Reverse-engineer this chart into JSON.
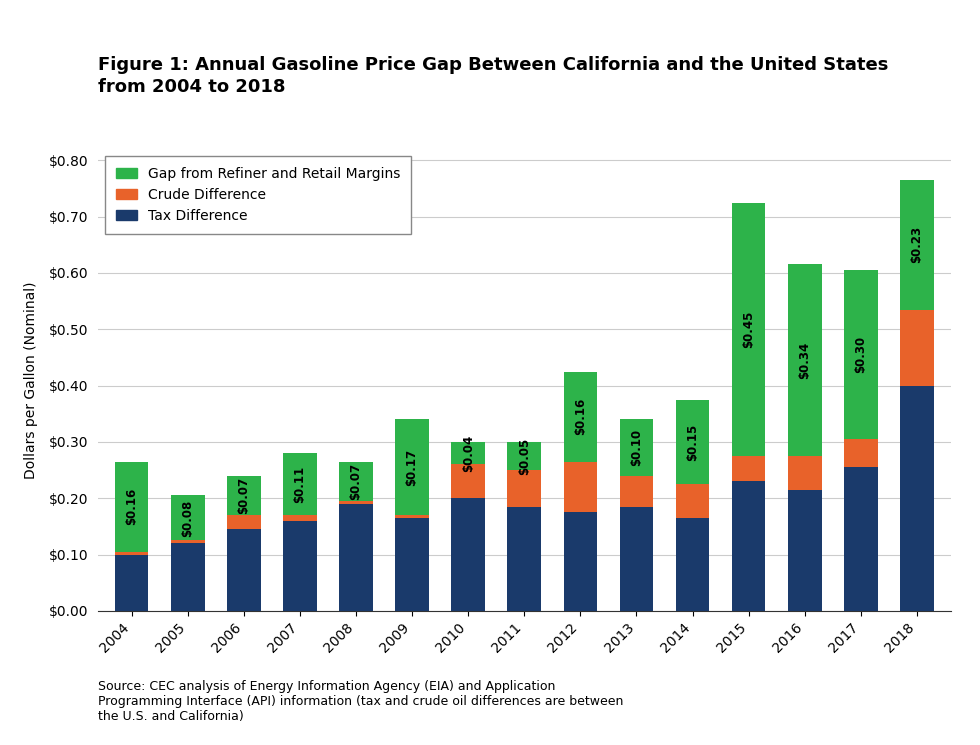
{
  "title_line1": "Figure 1: Annual Gasoline Price Gap Between California and the United States",
  "title_line2": "from 2004 to 2018",
  "ylabel": "Dollars per Gallon (Nominal)",
  "source_text": "Source: CEC analysis of Energy Information Agency (EIA) and Application\nProgramming Interface (API) information (tax and crude oil differences are between\nthe U.S. and California)",
  "years": [
    "2004",
    "2005",
    "2006",
    "2007",
    "2008",
    "2009",
    "2010",
    "2011",
    "2012",
    "2013",
    "2014",
    "2015",
    "2016",
    "2017",
    "2018"
  ],
  "tax_diff": [
    0.1,
    0.12,
    0.145,
    0.16,
    0.19,
    0.165,
    0.2,
    0.185,
    0.175,
    0.185,
    0.165,
    0.23,
    0.215,
    0.255,
    0.4
  ],
  "crude_diff": [
    0.005,
    0.005,
    0.025,
    0.01,
    0.005,
    0.005,
    0.06,
    0.065,
    0.09,
    0.055,
    0.06,
    0.045,
    0.06,
    0.05,
    0.135
  ],
  "margin_gap": [
    0.16,
    0.08,
    0.07,
    0.11,
    0.07,
    0.17,
    0.04,
    0.05,
    0.16,
    0.1,
    0.15,
    0.45,
    0.34,
    0.3,
    0.23
  ],
  "gap_labels": [
    "$0.16",
    "$0.08",
    "$0.07",
    "$0.11",
    "$0.07",
    "$0.17",
    "$0.04",
    "$0.05",
    "$0.16",
    "$0.10",
    "$0.15",
    "$0.45",
    "$0.34",
    "$0.30",
    "$0.23"
  ],
  "color_tax": "#1a3a6b",
  "color_crude": "#e8622a",
  "color_margin": "#2db34a",
  "ylim": [
    0,
    0.82
  ],
  "yticks": [
    0.0,
    0.1,
    0.2,
    0.3,
    0.4,
    0.5,
    0.6,
    0.7,
    0.8
  ],
  "ytick_labels": [
    "$0.00",
    "$0.10",
    "$0.20",
    "$0.30",
    "$0.40",
    "$0.50",
    "$0.60",
    "$0.70",
    "$0.80"
  ],
  "legend_labels": [
    "Gap from Refiner and Retail Margins",
    "Crude Difference",
    "Tax Difference"
  ],
  "background_color": "#ffffff",
  "title_fontsize": 13,
  "axis_fontsize": 10,
  "label_fontsize": 8.5,
  "bar_width": 0.6
}
